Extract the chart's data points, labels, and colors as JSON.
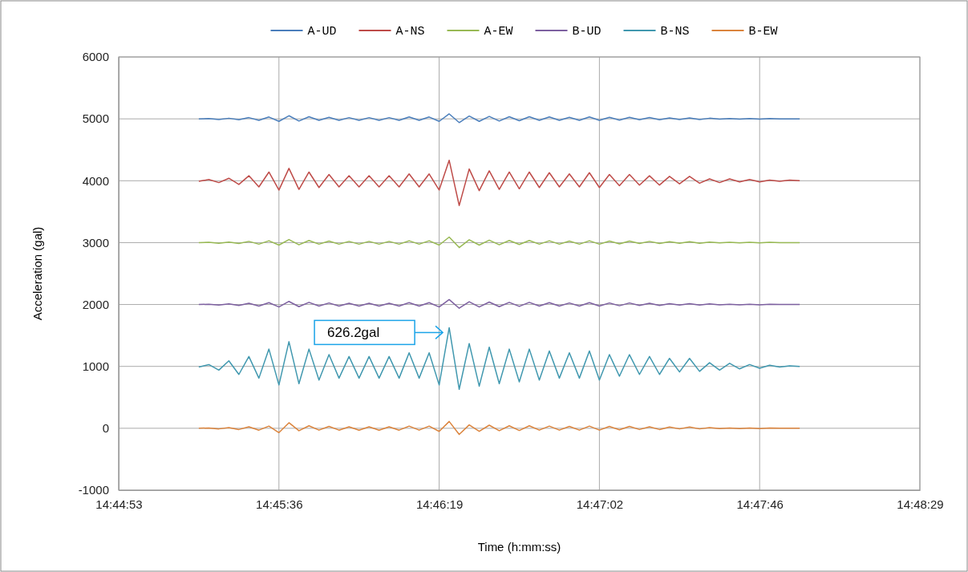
{
  "chart_data": {
    "type": "line",
    "xlabel": "Time (h:mm:ss)",
    "ylabel": "Acceleration (gal)",
    "legend": "top",
    "grid": true,
    "marker": "none",
    "line_style": "solid",
    "xlim": [
      14.748,
      14.808
    ],
    "xticks": [
      {
        "value": 14.748,
        "label": "14:44:53"
      },
      {
        "value": 14.76,
        "label": "14:45:36"
      },
      {
        "value": 14.772,
        "label": "14:46:19"
      },
      {
        "value": 14.784,
        "label": "14:47:02"
      },
      {
        "value": 14.796,
        "label": "14:47:46"
      },
      {
        "value": 14.808,
        "label": "14:48:29"
      }
    ],
    "ylim": [
      -1000,
      6000
    ],
    "yticks": [
      -1000,
      0,
      1000,
      2000,
      3000,
      4000,
      5000,
      6000
    ],
    "x": [
      14.754,
      14.75475,
      14.7555,
      14.75625,
      14.757,
      14.75775,
      14.7585,
      14.75925,
      14.76,
      14.76075,
      14.7615,
      14.76225,
      14.763,
      14.76375,
      14.7645,
      14.76525,
      14.766,
      14.76675,
      14.7675,
      14.76825,
      14.769,
      14.76975,
      14.7705,
      14.77125,
      14.772,
      14.77275,
      14.7735,
      14.77425,
      14.775,
      14.77575,
      14.7765,
      14.77725,
      14.778,
      14.77875,
      14.7795,
      14.78025,
      14.781,
      14.78175,
      14.7825,
      14.78325,
      14.784,
      14.78475,
      14.7855,
      14.78625,
      14.787,
      14.78775,
      14.7885,
      14.78925,
      14.79,
      14.79075,
      14.7915,
      14.79225,
      14.793,
      14.79375,
      14.7945,
      14.79525,
      14.796,
      14.79675,
      14.7975,
      14.79825,
      14.799
    ],
    "series": [
      {
        "name": "A-UD",
        "color": "#4a7ebb",
        "values": [
          5000,
          5005,
          4990,
          5010,
          4985,
          5020,
          4975,
          5030,
          4960,
          5050,
          4965,
          5035,
          4975,
          5025,
          4975,
          5020,
          4975,
          5020,
          4975,
          5020,
          4975,
          5030,
          4975,
          5030,
          4960,
          5080,
          4940,
          5045,
          4960,
          5040,
          4965,
          5035,
          4970,
          5035,
          4975,
          5030,
          4975,
          5025,
          4975,
          5030,
          4975,
          5025,
          4980,
          5025,
          4985,
          5020,
          4985,
          5015,
          4990,
          5015,
          4990,
          5010,
          4995,
          5005,
          4995,
          5005,
          4995,
          5005,
          5000,
          5000,
          5000
        ]
      },
      {
        "name": "A-NS",
        "color": "#be4b48",
        "values": [
          3990,
          4020,
          3970,
          4040,
          3940,
          4080,
          3900,
          4140,
          3850,
          4200,
          3860,
          4140,
          3890,
          4100,
          3900,
          4080,
          3900,
          4080,
          3900,
          4080,
          3900,
          4110,
          3900,
          4110,
          3850,
          4330,
          3600,
          4190,
          3840,
          4160,
          3860,
          4140,
          3870,
          4140,
          3890,
          4130,
          3900,
          4110,
          3900,
          4130,
          3890,
          4100,
          3920,
          4100,
          3930,
          4080,
          3930,
          4070,
          3950,
          4070,
          3960,
          4030,
          3970,
          4030,
          3980,
          4020,
          3980,
          4010,
          3990,
          4010,
          4000
        ]
      },
      {
        "name": "A-EW",
        "color": "#98b954",
        "values": [
          3000,
          3005,
          2990,
          3010,
          2985,
          3020,
          2975,
          3030,
          2960,
          3050,
          2965,
          3035,
          2975,
          3025,
          2975,
          3020,
          2975,
          3020,
          2975,
          3020,
          2975,
          3030,
          2975,
          3030,
          2960,
          3090,
          2920,
          3045,
          2960,
          3040,
          2965,
          3035,
          2970,
          3035,
          2975,
          3030,
          2975,
          3025,
          2975,
          3030,
          2975,
          3025,
          2980,
          3025,
          2985,
          3020,
          2985,
          3015,
          2990,
          3015,
          2990,
          3010,
          2995,
          3005,
          2995,
          3005,
          2995,
          3005,
          3000,
          3000,
          3000
        ]
      },
      {
        "name": "B-UD",
        "color": "#7d60a0",
        "values": [
          2000,
          2005,
          1990,
          2010,
          1985,
          2020,
          1975,
          2030,
          1960,
          2050,
          1965,
          2035,
          1975,
          2025,
          1975,
          2020,
          1975,
          2020,
          1975,
          2020,
          1975,
          2030,
          1975,
          2030,
          1960,
          2080,
          1940,
          2045,
          1960,
          2040,
          1965,
          2035,
          1970,
          2035,
          1975,
          2030,
          1975,
          2025,
          1975,
          2030,
          1975,
          2025,
          1980,
          2025,
          1985,
          2020,
          1985,
          2015,
          1990,
          2015,
          1990,
          2010,
          1995,
          2005,
          1995,
          2005,
          1995,
          2005,
          2000,
          2000,
          2000
        ]
      },
      {
        "name": "B-NS",
        "color": "#4198af",
        "values": [
          990,
          1030,
          940,
          1090,
          870,
          1160,
          810,
          1280,
          700,
          1400,
          720,
          1280,
          780,
          1190,
          810,
          1160,
          810,
          1160,
          810,
          1160,
          810,
          1220,
          810,
          1220,
          700,
          1626.2,
          630,
          1370,
          680,
          1310,
          720,
          1280,
          750,
          1280,
          780,
          1250,
          810,
          1220,
          810,
          1250,
          780,
          1190,
          840,
          1190,
          870,
          1160,
          870,
          1130,
          910,
          1130,
          920,
          1060,
          940,
          1050,
          960,
          1030,
          970,
          1020,
          990,
          1010,
          1000
        ]
      },
      {
        "name": "B-EW",
        "color": "#db843d",
        "values": [
          0,
          5,
          -10,
          10,
          -20,
          25,
          -30,
          35,
          -70,
          90,
          -40,
          40,
          -30,
          30,
          -30,
          25,
          -30,
          25,
          -30,
          25,
          -30,
          35,
          -30,
          35,
          -50,
          110,
          -100,
          55,
          -50,
          50,
          -40,
          40,
          -35,
          40,
          -30,
          35,
          -30,
          30,
          -30,
          35,
          -30,
          30,
          -25,
          30,
          -20,
          25,
          -20,
          20,
          -10,
          20,
          -10,
          10,
          -5,
          5,
          -5,
          5,
          -5,
          5,
          0,
          0,
          0
        ]
      }
    ],
    "annotations": [
      "626.2gal"
    ]
  }
}
